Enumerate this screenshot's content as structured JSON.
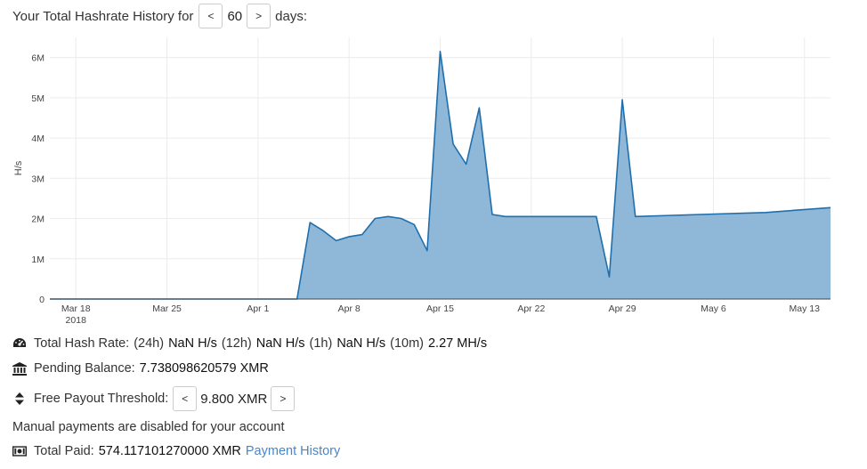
{
  "header": {
    "prefix": "Your Total Hashrate History for",
    "prev_label": "<",
    "days_value": "60",
    "next_label": ">",
    "suffix": "days:"
  },
  "chart_data": {
    "type": "area",
    "ylabel": "H/s",
    "y_ticks": [
      "0",
      "1M",
      "2M",
      "3M",
      "4M",
      "5M",
      "6M"
    ],
    "y_tick_values": [
      0,
      1000000,
      2000000,
      3000000,
      4000000,
      5000000,
      6000000
    ],
    "ylim": [
      0,
      6500000
    ],
    "x_range": [
      "2018-03-16",
      "2018-05-15"
    ],
    "x_ticks": [
      {
        "label": "Mar 18",
        "sub": "2018",
        "date": "2018-03-18"
      },
      {
        "label": "Mar 25",
        "date": "2018-03-25"
      },
      {
        "label": "Apr 1",
        "date": "2018-04-01"
      },
      {
        "label": "Apr 8",
        "date": "2018-04-08"
      },
      {
        "label": "Apr 15",
        "date": "2018-04-15"
      },
      {
        "label": "Apr 22",
        "date": "2018-04-22"
      },
      {
        "label": "Apr 29",
        "date": "2018-04-29"
      },
      {
        "label": "May 6",
        "date": "2018-05-06"
      },
      {
        "label": "May 13",
        "date": "2018-05-13"
      }
    ],
    "series": [
      {
        "color": "#1f6fad",
        "fill": "#8fb7d8",
        "points": [
          [
            "2018-03-16",
            0
          ],
          [
            "2018-04-04",
            0
          ],
          [
            "2018-04-05",
            1900000
          ],
          [
            "2018-04-06",
            1700000
          ],
          [
            "2018-04-07",
            1450000
          ],
          [
            "2018-04-08",
            1550000
          ],
          [
            "2018-04-09",
            1600000
          ],
          [
            "2018-04-10",
            2000000
          ],
          [
            "2018-04-11",
            2050000
          ],
          [
            "2018-04-12",
            2000000
          ],
          [
            "2018-04-13",
            1850000
          ],
          [
            "2018-04-14",
            1200000
          ],
          [
            "2018-04-15",
            6150000
          ],
          [
            "2018-04-16",
            3850000
          ],
          [
            "2018-04-17",
            3350000
          ],
          [
            "2018-04-18",
            4750000
          ],
          [
            "2018-04-19",
            2100000
          ],
          [
            "2018-04-20",
            2050000
          ],
          [
            "2018-04-21",
            2050000
          ],
          [
            "2018-04-22",
            2050000
          ],
          [
            "2018-04-25",
            2050000
          ],
          [
            "2018-04-27",
            2050000
          ],
          [
            "2018-04-28",
            550000
          ],
          [
            "2018-04-29",
            4950000
          ],
          [
            "2018-04-30",
            2050000
          ],
          [
            "2018-05-05",
            2100000
          ],
          [
            "2018-05-10",
            2150000
          ],
          [
            "2018-05-15",
            2270000
          ]
        ]
      }
    ]
  },
  "stats": {
    "total_hash": {
      "icon": "dashboard-icon",
      "label": "Total Hash Rate:",
      "p24h": "(24h)",
      "v24h": "NaN H/s",
      "p12h": "(12h)",
      "v12h": "NaN H/s",
      "p1h": "(1h)",
      "v1h": "NaN H/s",
      "p10m": "(10m)",
      "v10m": "2.27 MH/s"
    },
    "pending": {
      "icon": "bank-icon",
      "label": "Pending Balance:",
      "value": "7.738098620579 XMR"
    },
    "threshold": {
      "icon": "sort-icon",
      "label": "Free Payout Threshold:",
      "prev_label": "<",
      "value": "9.800 XMR",
      "next_label": ">"
    },
    "manual_note": "Manual payments are disabled for your account",
    "paid": {
      "icon": "money-icon",
      "label": "Total Paid:",
      "value": "574.117101270000 XMR",
      "link": "Payment History"
    }
  }
}
